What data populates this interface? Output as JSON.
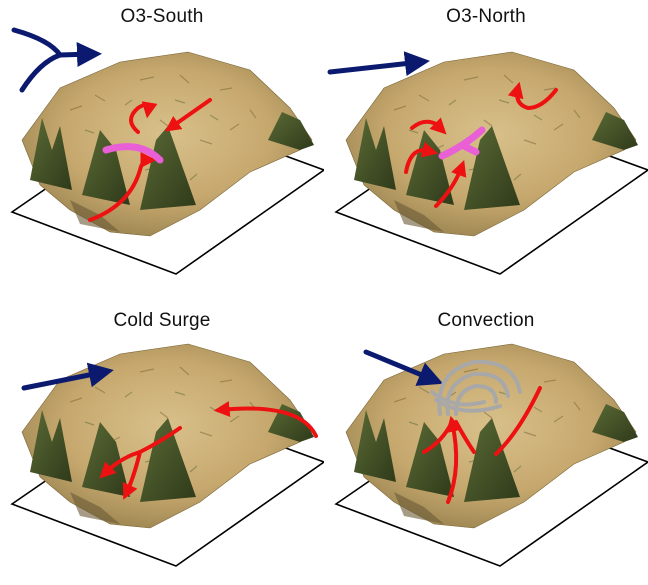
{
  "panels": [
    {
      "title": "O3-South"
    },
    {
      "title": "O3-North"
    },
    {
      "title": "Cold Surge"
    },
    {
      "title": "Convection"
    }
  ],
  "colors": {
    "synoptic_wind": "#0b1a6e",
    "local_flow": "#ee1111",
    "convergence_zone": "#e85fd6",
    "convective_cloud": "#a8a8a8",
    "terrain_light": "#cdb27c",
    "terrain_dark": "#3e4a22",
    "base_plane": "#000000"
  },
  "icons": [
    "wind-vector-icon",
    "flow-arrow-icon",
    "convergence-line-icon",
    "cloud-swirl-icon"
  ]
}
